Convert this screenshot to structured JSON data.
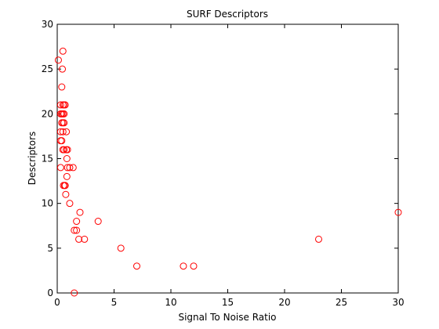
{
  "chart_data": {
    "type": "scatter",
    "title": "SURF Descriptors",
    "xlabel": "Signal To Noise Ratio",
    "ylabel": "Descriptors",
    "xlim": [
      0,
      30
    ],
    "ylim": [
      0,
      30
    ],
    "xticks": [
      0,
      5,
      10,
      15,
      20,
      25,
      30
    ],
    "yticks": [
      0,
      5,
      10,
      15,
      20,
      25,
      30
    ],
    "grid": false,
    "marker": "circle-open",
    "marker_color": "#ff0000",
    "series": [
      {
        "x": [
          0.1,
          0.5,
          0.45,
          0.4,
          0.3,
          0.5,
          0.6,
          0.7,
          0.3,
          0.4,
          0.5,
          0.6,
          0.4,
          0.5,
          0.6,
          0.3,
          0.5,
          0.4,
          0.8,
          0.3,
          0.5,
          0.6,
          0.8,
          0.9,
          0.85,
          0.3,
          0.9,
          1.1,
          1.4,
          0.85,
          0.55,
          0.65,
          0.7,
          0.75,
          1.1,
          2.0,
          3.6,
          1.7,
          1.5,
          1.7,
          1.9,
          2.4,
          5.6,
          7.0,
          11.1,
          12.0,
          23.0,
          30.0,
          1.5
        ],
        "y": [
          26,
          27,
          25,
          23,
          21,
          21,
          21,
          21,
          20,
          20,
          20,
          20,
          19,
          19,
          19,
          18,
          18,
          17,
          18,
          17,
          16,
          16,
          16,
          16,
          15,
          14,
          14,
          14,
          14,
          13,
          12,
          12,
          12,
          11,
          10,
          9,
          8,
          8,
          7,
          7,
          6,
          6,
          5,
          3,
          3,
          3,
          6,
          9,
          0
        ]
      }
    ]
  }
}
